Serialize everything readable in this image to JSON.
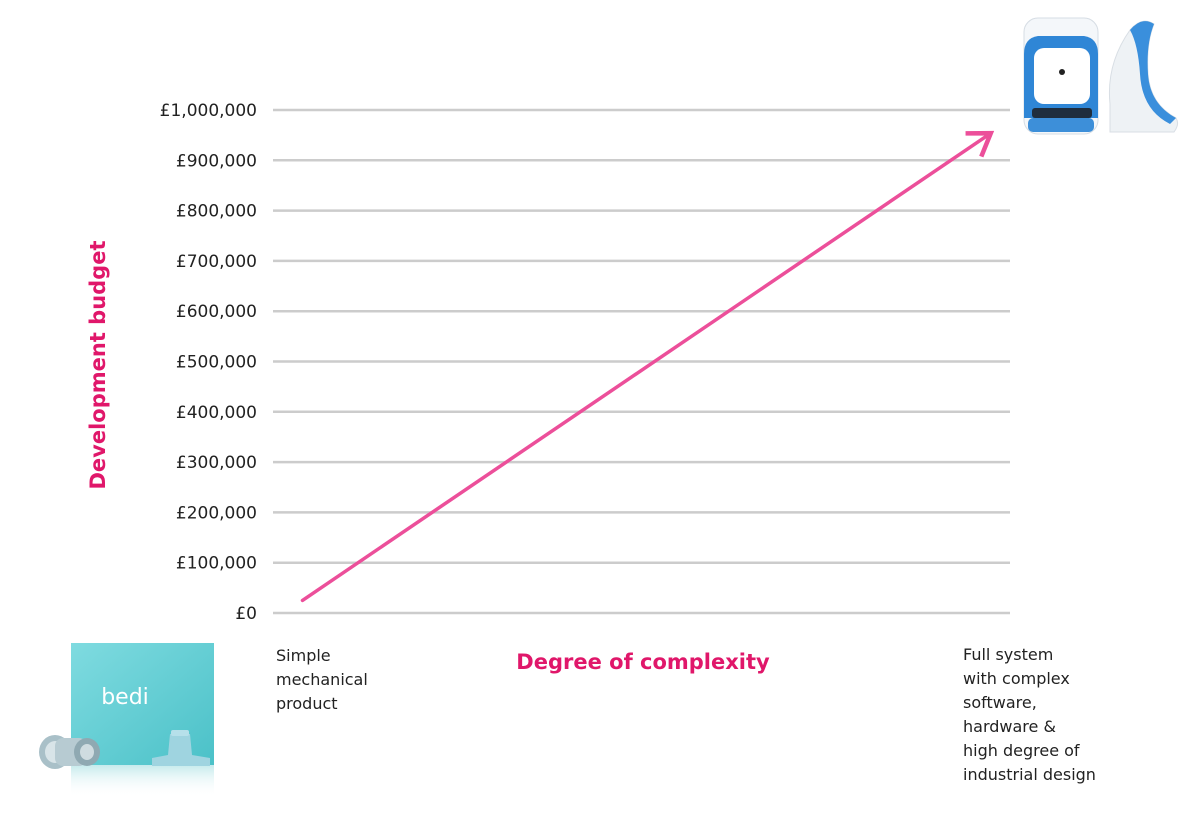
{
  "chart_data": {
    "type": "line",
    "xlabel": "Degree of complexity",
    "ylabel": "Development budget",
    "yticks": [
      "£0",
      "£100,000",
      "£200,000",
      "£300,000",
      "£400,000",
      "£500,000",
      "£600,000",
      "£700,000",
      "£800,000",
      "£900,000",
      "£1,000,000"
    ],
    "ytick_values": [
      0,
      100000,
      200000,
      300000,
      400000,
      500000,
      600000,
      700000,
      800000,
      900000,
      1000000
    ],
    "ylim": [
      0,
      1000000
    ],
    "xlim": [
      0,
      1
    ],
    "grid": true,
    "trend": {
      "start": {
        "x": 0.04,
        "y": 25000
      },
      "end": {
        "x": 0.97,
        "y": 950000
      }
    },
    "x_annotations": {
      "low": "Simple\nmechanical\nproduct",
      "high": "Full system\nwith complex\nsoftware,\nhardware &\nhigh degree of\nindustrial design"
    }
  },
  "products": {
    "box_brand_text": "bedi"
  },
  "colors": {
    "accent": "#e0176a",
    "arrow": "#ec4f9a",
    "grid": "#cccccc",
    "teal": "#62cfd5",
    "device_blue": "#2f86d6"
  }
}
